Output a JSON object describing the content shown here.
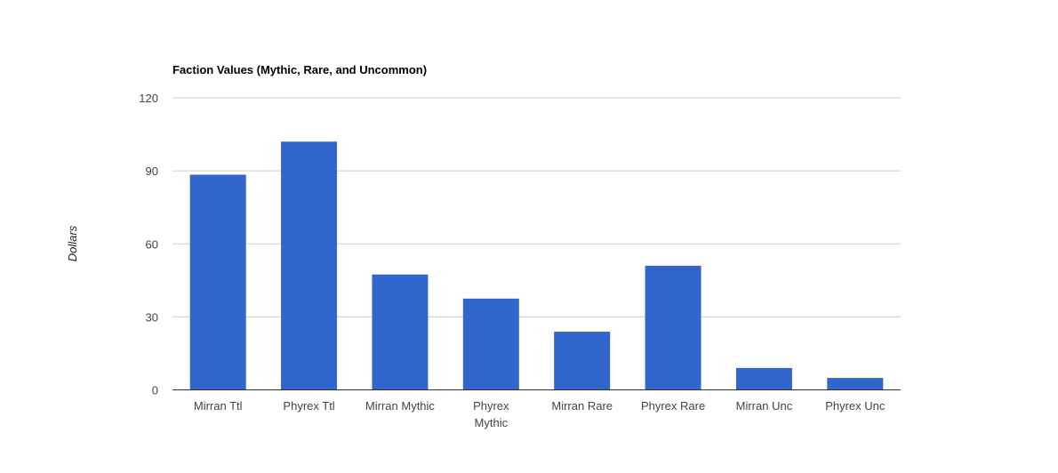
{
  "chart_data": {
    "type": "bar",
    "title": "Faction Values (Mythic, Rare, and Uncommon)",
    "xlabel": "",
    "ylabel": "Dollars",
    "ylim": [
      0,
      120
    ],
    "yticks": [
      0,
      30,
      60,
      90,
      120
    ],
    "grid": true,
    "legend": "none",
    "color": "#3366cc",
    "categories": [
      "Mirran Ttl",
      "Phyrex Ttl",
      "Mirran Mythic",
      "Phyrex Mythic",
      "Mirran Rare",
      "Phyrex Rare",
      "Mirran Unc",
      "Phyrex Unc"
    ],
    "values": [
      88.4,
      102,
      47.4,
      37.5,
      23.9,
      51.0,
      9.0,
      4.9
    ]
  }
}
